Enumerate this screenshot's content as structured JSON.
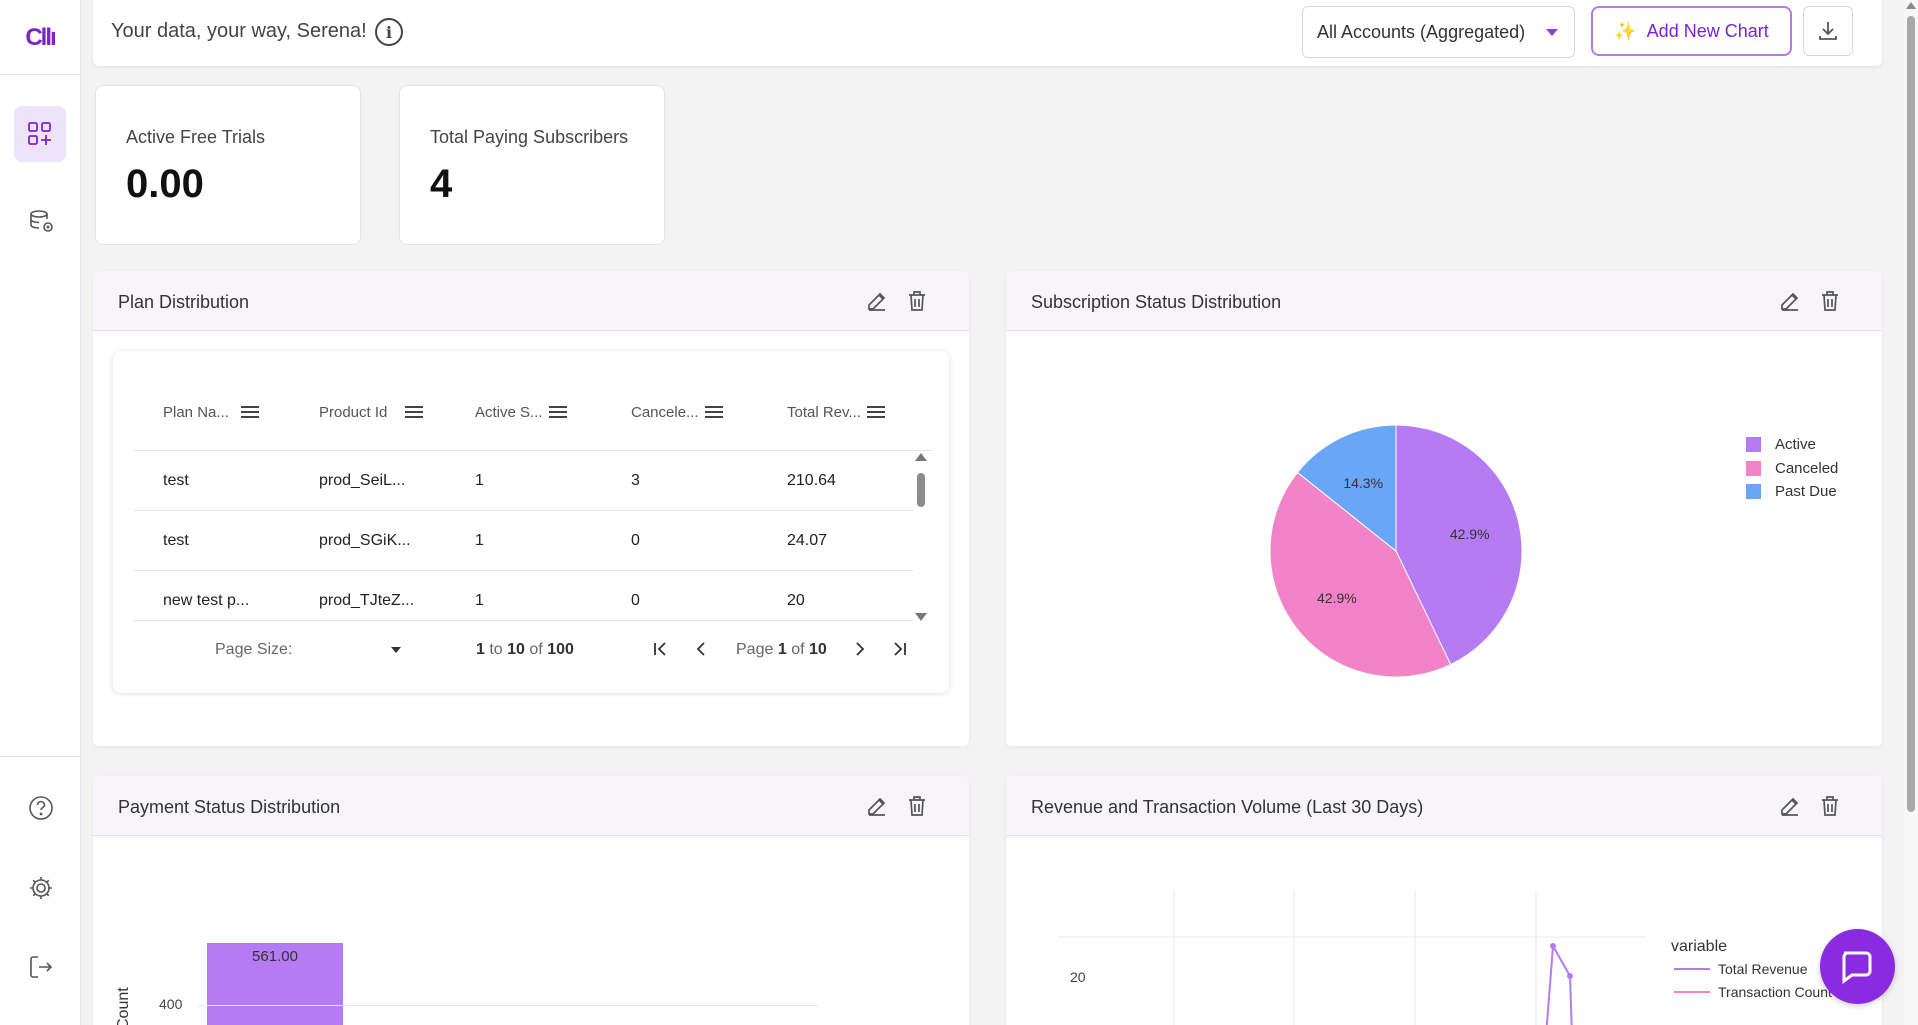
{
  "sidebar": {
    "logo_text": "Cllı",
    "items": [
      {
        "name": "dashboard",
        "icon": "dashboard-plus-icon",
        "active": true
      },
      {
        "name": "data-sources",
        "icon": "database-sync-icon",
        "active": false
      }
    ],
    "bottom_items": [
      {
        "name": "help",
        "icon": "help-icon"
      },
      {
        "name": "settings",
        "icon": "gear-icon"
      },
      {
        "name": "logout",
        "icon": "logout-icon"
      }
    ]
  },
  "header": {
    "greeting": "Your data, your way, Serena!",
    "info_icon_glyph": "i",
    "account_select": "All Accounts (Aggregated)",
    "add_chart_label": "Add New Chart",
    "sparkle_glyph": "✨"
  },
  "kpis": [
    {
      "label": "Active Free Trials",
      "value": "0.00"
    },
    {
      "label": "Total Paying Subscribers",
      "value": "4"
    }
  ],
  "plan_distribution": {
    "title": "Plan Distribution",
    "columns": [
      "Plan Na...",
      "Product Id",
      "Active S...",
      "Cancele...",
      "Total Rev..."
    ],
    "rows": [
      [
        "test",
        "prod_SeiL...",
        "1",
        "3",
        "210.64"
      ],
      [
        "test",
        "prod_SGiK...",
        "1",
        "0",
        "24.07"
      ],
      [
        "new test p...",
        "prod_TJteZ...",
        "1",
        "0",
        "20"
      ]
    ],
    "pager": {
      "page_size_label": "Page Size:",
      "range_from": "1",
      "range_to": "10",
      "range_total": "100",
      "to_word": "to",
      "of_word": "of",
      "page_word": "Page",
      "page_current": "1",
      "page_total": "10"
    }
  },
  "subscription_status": {
    "title": "Subscription Status Distribution",
    "legend": [
      {
        "label": "Active",
        "color": "#b57bf5"
      },
      {
        "label": "Canceled",
        "color": "#f283c8"
      },
      {
        "label": "Past Due",
        "color": "#6aa6f7"
      }
    ],
    "slice_labels": [
      "42.9%",
      "42.9%",
      "14.3%"
    ]
  },
  "payment_status": {
    "title": "Payment Status Distribution",
    "bar_label": "561.00",
    "tick_label": "400",
    "axis_label": "Count"
  },
  "revenue_volume": {
    "title": "Revenue and Transaction Volume (Last 30 Days)",
    "legend_title": "variable",
    "legend": [
      {
        "label": "Total Revenue",
        "color": "#b57bf5"
      },
      {
        "label": "Transaction Count",
        "color": "#f283c8"
      }
    ],
    "tick_label": "20"
  },
  "chart_data": [
    {
      "type": "pie",
      "categories": [
        "Active",
        "Canceled",
        "Past Due"
      ],
      "values": [
        42.9,
        42.9,
        14.3
      ]
    }
  ]
}
